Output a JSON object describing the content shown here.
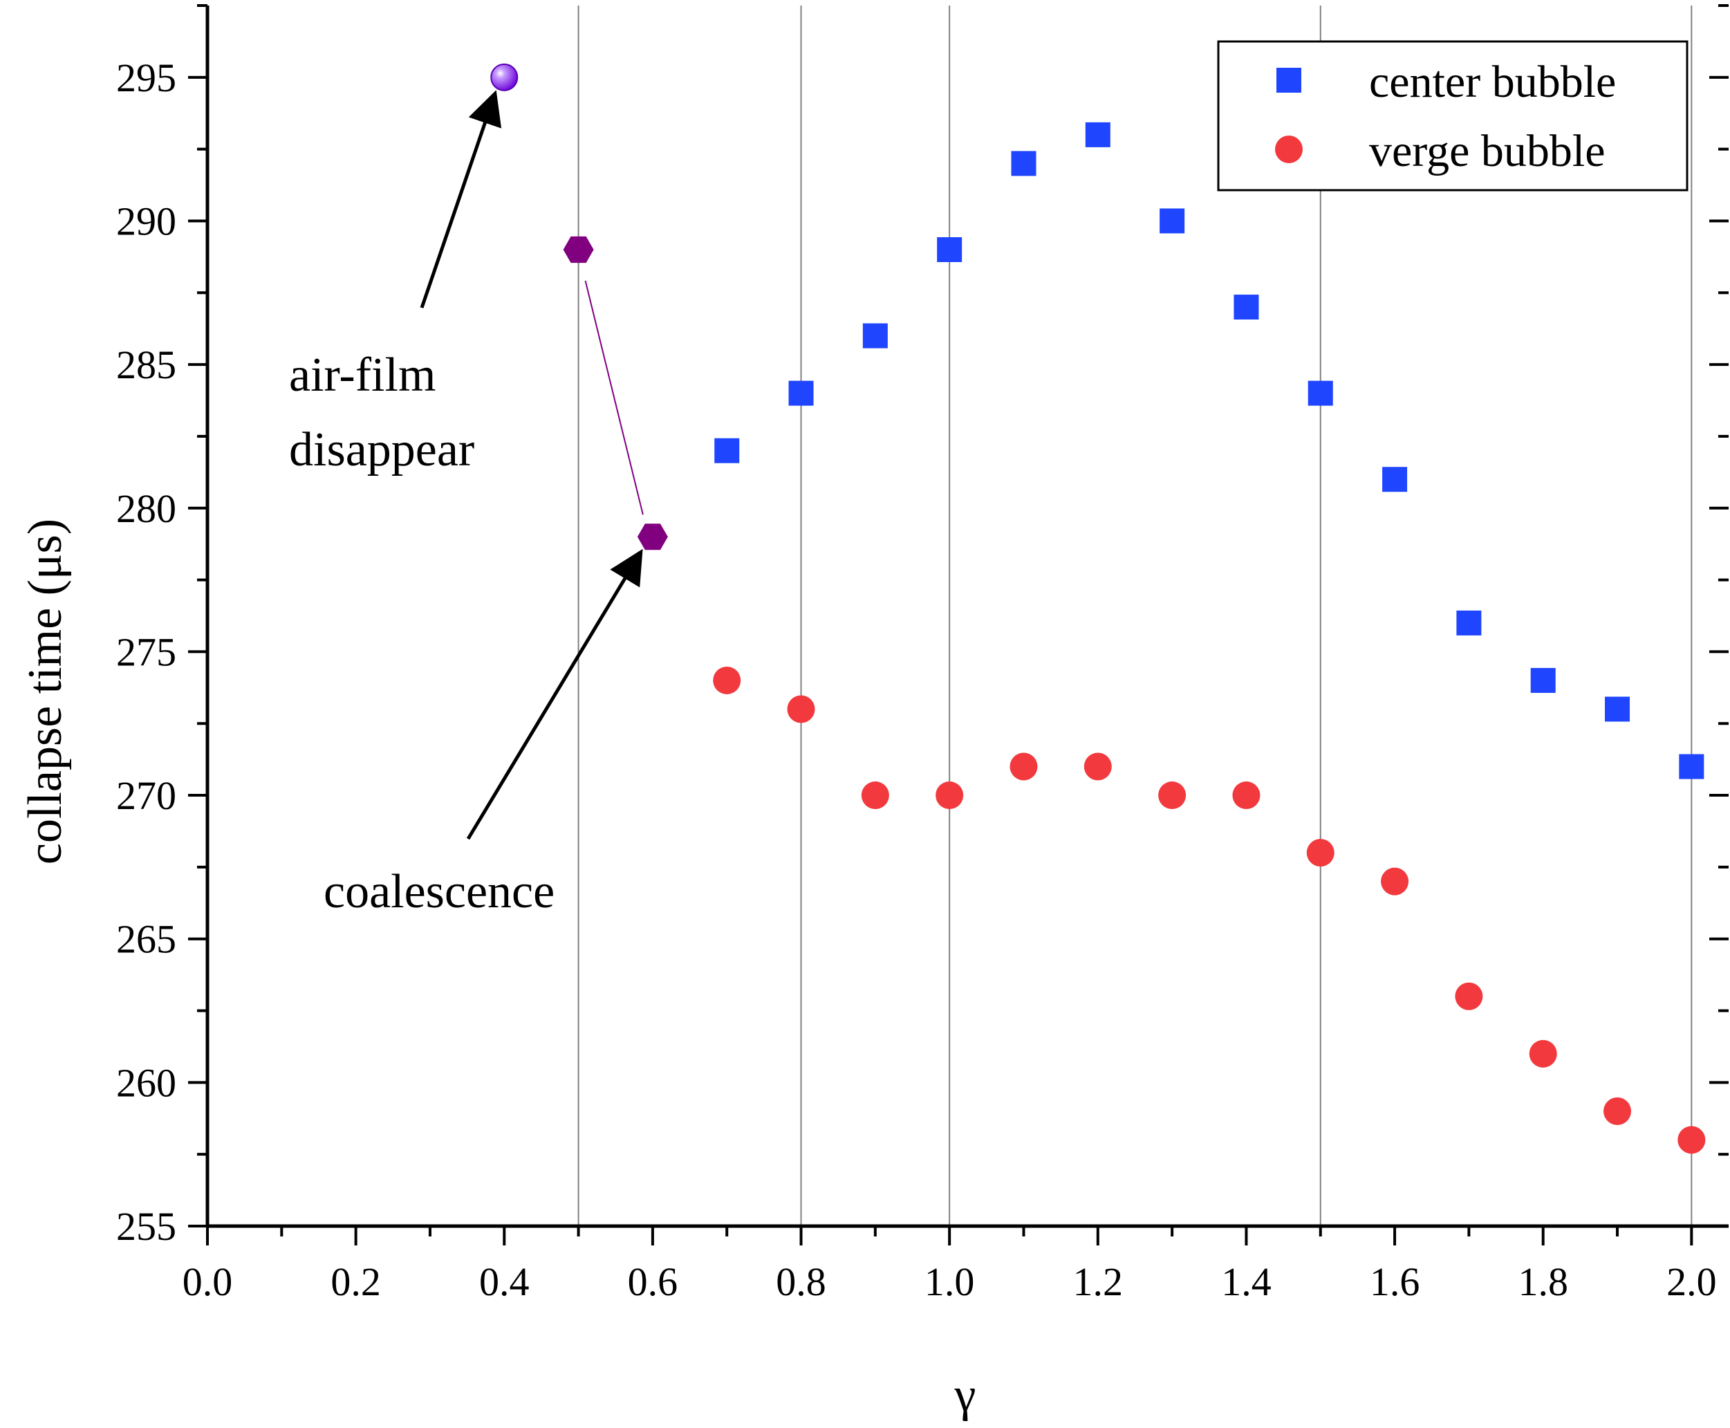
{
  "colors": {
    "center": "#1f45ff",
    "verge": "#f2393e",
    "hexagon": "#800080",
    "sphere": "#8a1be2",
    "axis": "#000000",
    "grid": "#808080"
  },
  "chart_data": {
    "type": "scatter",
    "xlabel": "γ",
    "ylabel": "collapse time (μs)",
    "xlim": [
      0.0,
      2.05
    ],
    "ylim": [
      255,
      297.5
    ],
    "x_ticks": [
      0.0,
      0.2,
      0.4,
      0.6,
      0.8,
      1.0,
      1.2,
      1.4,
      1.6,
      1.8,
      2.0
    ],
    "x_tick_labels": [
      "0.0",
      "0.2",
      "0.4",
      "0.6",
      "0.8",
      "1.0",
      "1.2",
      "1.4",
      "1.6",
      "1.8",
      "2.0"
    ],
    "y_ticks": [
      255,
      260,
      265,
      270,
      275,
      280,
      285,
      290,
      295
    ],
    "y_tick_labels": [
      "255",
      "260",
      "265",
      "270",
      "275",
      "280",
      "285",
      "290",
      "295"
    ],
    "vertical_gridlines_x": [
      0.5,
      0.8,
      1.0,
      1.5,
      2.0
    ],
    "legend_position": "top-right",
    "series": [
      {
        "name": "center bubble",
        "marker": "square",
        "color_key": "center",
        "x": [
          0.7,
          0.8,
          0.9,
          1.0,
          1.1,
          1.2,
          1.3,
          1.4,
          1.5,
          1.6,
          1.7,
          1.8,
          1.9,
          2.0
        ],
        "y": [
          282,
          284,
          286,
          289,
          292,
          293,
          290,
          287,
          284,
          281,
          276,
          274,
          273,
          271
        ]
      },
      {
        "name": "verge bubble",
        "marker": "circle",
        "color_key": "verge",
        "x": [
          0.7,
          0.8,
          0.9,
          1.0,
          1.1,
          1.2,
          1.3,
          1.4,
          1.5,
          1.6,
          1.7,
          1.8,
          1.9,
          2.0
        ],
        "y": [
          274,
          273,
          270,
          270,
          271,
          271,
          270,
          270,
          268,
          267,
          263,
          261,
          259,
          258
        ]
      }
    ],
    "special_points": {
      "coalescence": {
        "marker": "hexagon",
        "color_key": "hexagon",
        "x": [
          0.5,
          0.6
        ],
        "y": [
          289,
          279
        ]
      },
      "air_film": {
        "marker": "sphere",
        "color_key": "sphere",
        "x": [
          0.4
        ],
        "y": [
          295
        ]
      }
    },
    "annotations": {
      "air_film_line1": "air-film",
      "air_film_line2": "disappear",
      "coalescence": "coalescence"
    }
  }
}
